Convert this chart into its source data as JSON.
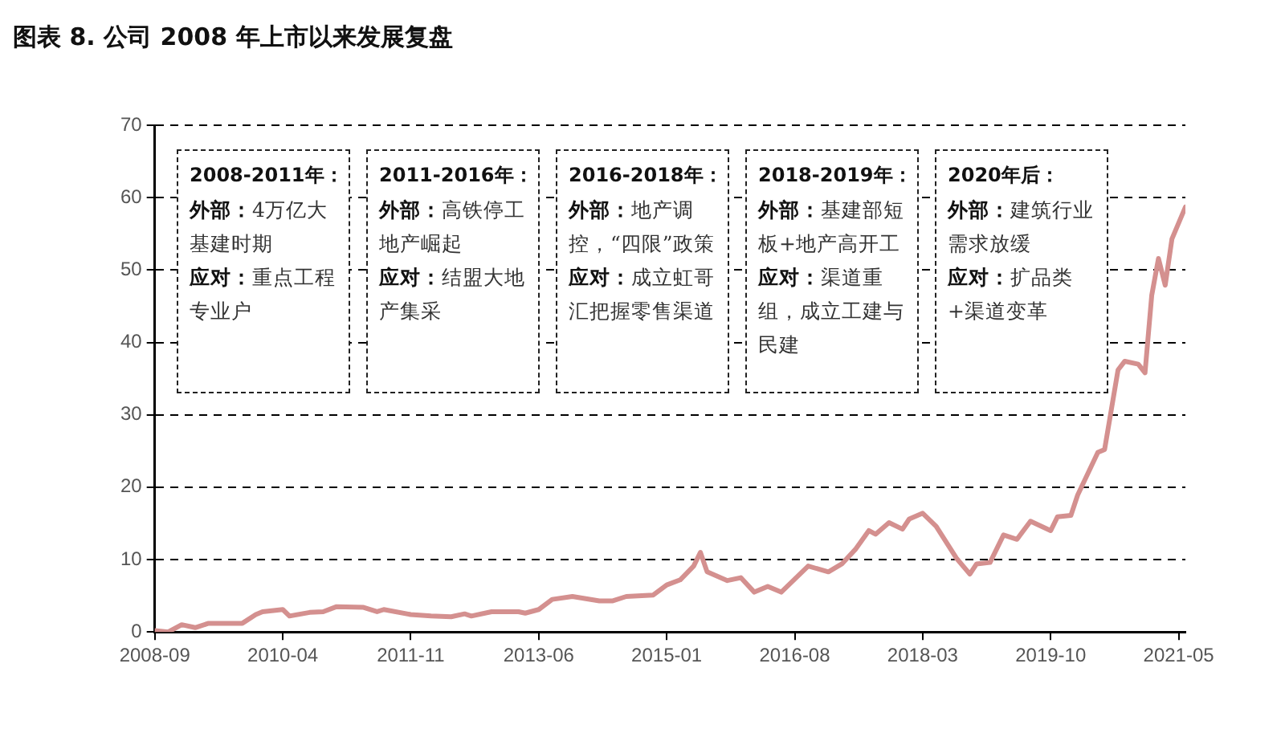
{
  "chart_data": {
    "type": "line",
    "title": "图表 8. 公司 2008 年上市以来发展复盘",
    "x": [
      "2008-09",
      "2008-11",
      "2009-01",
      "2009-03",
      "2009-05",
      "2009-10",
      "2009-12",
      "2010-01",
      "2010-04",
      "2010-05",
      "2010-08",
      "2010-10",
      "2010-12",
      "2011-04",
      "2011-06",
      "2011-07",
      "2011-11",
      "2012-02",
      "2012-05",
      "2012-07",
      "2012-08",
      "2012-11",
      "2013-03",
      "2013-04",
      "2013-06",
      "2013-08",
      "2013-11",
      "2014-03",
      "2014-05",
      "2014-07",
      "2014-11",
      "2015-01",
      "2015-03",
      "2015-05",
      "2015-06",
      "2015-07",
      "2015-10",
      "2015-12",
      "2016-02",
      "2016-04",
      "2016-06",
      "2016-10",
      "2017-01",
      "2017-03",
      "2017-05",
      "2017-07",
      "2017-08",
      "2017-10",
      "2017-12",
      "2018-01",
      "2018-03",
      "2018-05",
      "2018-08",
      "2018-10",
      "2018-11",
      "2019-01",
      "2019-03",
      "2019-05",
      "2019-07",
      "2019-10",
      "2019-11",
      "2020-01",
      "2020-02",
      "2020-05",
      "2020-06",
      "2020-08",
      "2020-09",
      "2020-11",
      "2020-12",
      "2021-01",
      "2021-02",
      "2021-03",
      "2021-04",
      "2021-06"
    ],
    "series": [
      {
        "color": "#d4908f",
        "values": [
          0.2,
          0,
          1.0,
          0.6,
          1.2,
          1.2,
          2.4,
          2.8,
          3.1,
          2.2,
          2.7,
          2.8,
          3.5,
          3.4,
          2.8,
          3.1,
          2.4,
          2.2,
          2.1,
          2.5,
          2.2,
          2.8,
          2.8,
          2.6,
          3.1,
          4.5,
          4.9,
          4.3,
          4.3,
          4.9,
          5.1,
          6.5,
          7.2,
          9.1,
          11.0,
          8.3,
          7.1,
          7.5,
          5.5,
          6.3,
          5.5,
          9.1,
          8.3,
          9.4,
          11.4,
          14.0,
          13.5,
          15.1,
          14.2,
          15.6,
          16.4,
          14.6,
          10.2,
          8.0,
          9.4,
          9.6,
          13.4,
          12.8,
          15.3,
          14.0,
          15.9,
          16.1,
          18.9,
          24.8,
          25.2,
          36.2,
          37.4,
          37.0,
          35.8,
          46.5,
          51.6,
          47.9,
          54.3,
          58.7
        ]
      }
    ],
    "xlim": [
      "2008-09",
      "2021-06"
    ],
    "xticks": [
      "2008-09",
      "2010-04",
      "2011-11",
      "2013-06",
      "2015-01",
      "2016-08",
      "2018-03",
      "2019-10",
      "2021-05"
    ],
    "ylim": [
      0,
      70
    ],
    "yticks": [
      0,
      10,
      20,
      30,
      40,
      50,
      60,
      70
    ],
    "grid": "y",
    "legend": false,
    "marker": "none",
    "line_style": "solid",
    "annotations": [
      "2008-2011年：",
      "外部：4万亿大基建时期",
      "应对：重点工程专业户",
      "2011-2016年：",
      "外部：高铁停工地产崛起",
      "应对：结盟大地产集采",
      "2016-2018年：",
      "外部：地产调控，“四限”政策",
      "应对：成立虹哥汇把握零售渠道",
      "2018-2019年：",
      "外部：基建部短板+地产高开工",
      "应对：渠道重组，成立工建与民建",
      "2020年后：",
      "外部：建筑行业需求放缓",
      "应对：扩品类+渠道变革"
    ]
  }
}
